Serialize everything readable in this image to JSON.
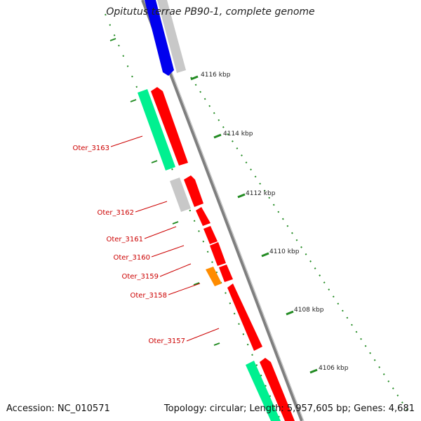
{
  "header": {
    "title": "Opitutus terrae PB90-1, complete genome"
  },
  "footer": {
    "accession": "Accession: NC_010571",
    "summary": "Topology: circular; Length: 5,957,605 bp; Genes: 4,681"
  },
  "colors": {
    "backbone": "#7f7f7f",
    "red_gene": "#ff0000",
    "blue_gene": "#0000ee",
    "gray_gene": "#c8c8c8",
    "green_gene": "#00f090",
    "orange_gene": "#ff8c00",
    "label_red": "#cc0000",
    "tick_green": "#228b22"
  },
  "ruler": {
    "ticks": [
      "4116 kbp",
      "4114 kbp",
      "4112 kbp",
      "4110 kbp",
      "4108 kbp",
      "4106 kbp"
    ]
  },
  "gene_labels": [
    "Oter_3163",
    "Oter_3162",
    "Oter_3161",
    "Oter_3160",
    "Oter_3159",
    "Oter_3158",
    "Oter_3157"
  ]
}
